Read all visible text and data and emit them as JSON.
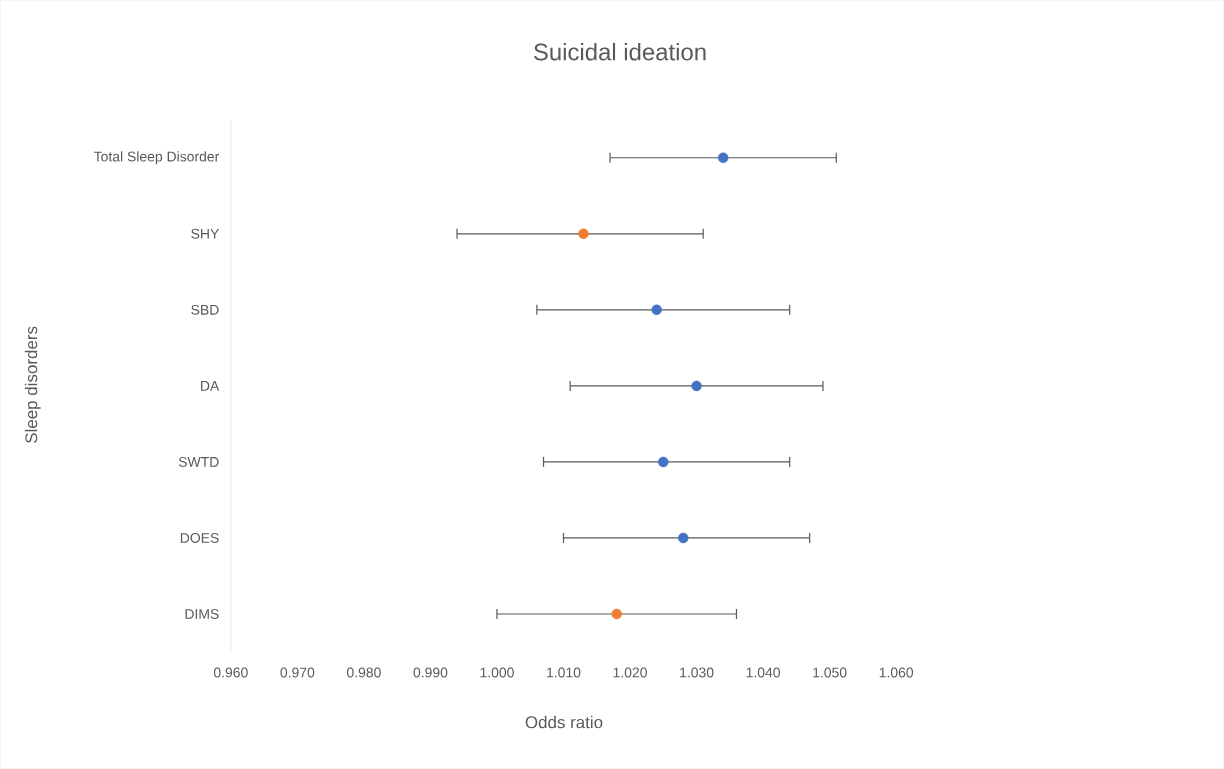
{
  "chart_data": {
    "type": "scatter",
    "orientation": "horizontal",
    "title": "Suicidal ideation",
    "xlabel": "Odds ratio",
    "ylabel": "Sleep disorders",
    "categories": [
      "Total Sleep Disorder",
      "SHY",
      "SBD",
      "DA",
      "SWTD",
      "DOES",
      "DIMS"
    ],
    "values": [
      1.034,
      1.013,
      1.024,
      1.03,
      1.025,
      1.028,
      1.018
    ],
    "errors": [
      [
        1.017,
        1.051
      ],
      [
        0.994,
        1.031
      ],
      [
        1.006,
        1.044
      ],
      [
        1.011,
        1.049
      ],
      [
        1.007,
        1.044
      ],
      [
        1.01,
        1.047
      ],
      [
        1.0,
        1.036
      ]
    ],
    "colors": [
      "#4472c4",
      "#ed7d31",
      "#4472c4",
      "#4472c4",
      "#4472c4",
      "#4472c4",
      "#ed7d31"
    ],
    "marker": "circle",
    "xlim": [
      0.96,
      1.06
    ],
    "xticks": [
      {
        "value": 0.96,
        "label": "0.960"
      },
      {
        "value": 0.97,
        "label": "0.970"
      },
      {
        "value": 0.98,
        "label": "0.980"
      },
      {
        "value": 0.99,
        "label": "0.990"
      },
      {
        "value": 1.0,
        "label": "1.000"
      },
      {
        "value": 1.01,
        "label": "1.010"
      },
      {
        "value": 1.02,
        "label": "1.020"
      },
      {
        "value": 1.03,
        "label": "1.030"
      },
      {
        "value": 1.04,
        "label": "1.040"
      },
      {
        "value": 1.05,
        "label": "1.050"
      },
      {
        "value": 1.06,
        "label": "1.060"
      }
    ]
  }
}
